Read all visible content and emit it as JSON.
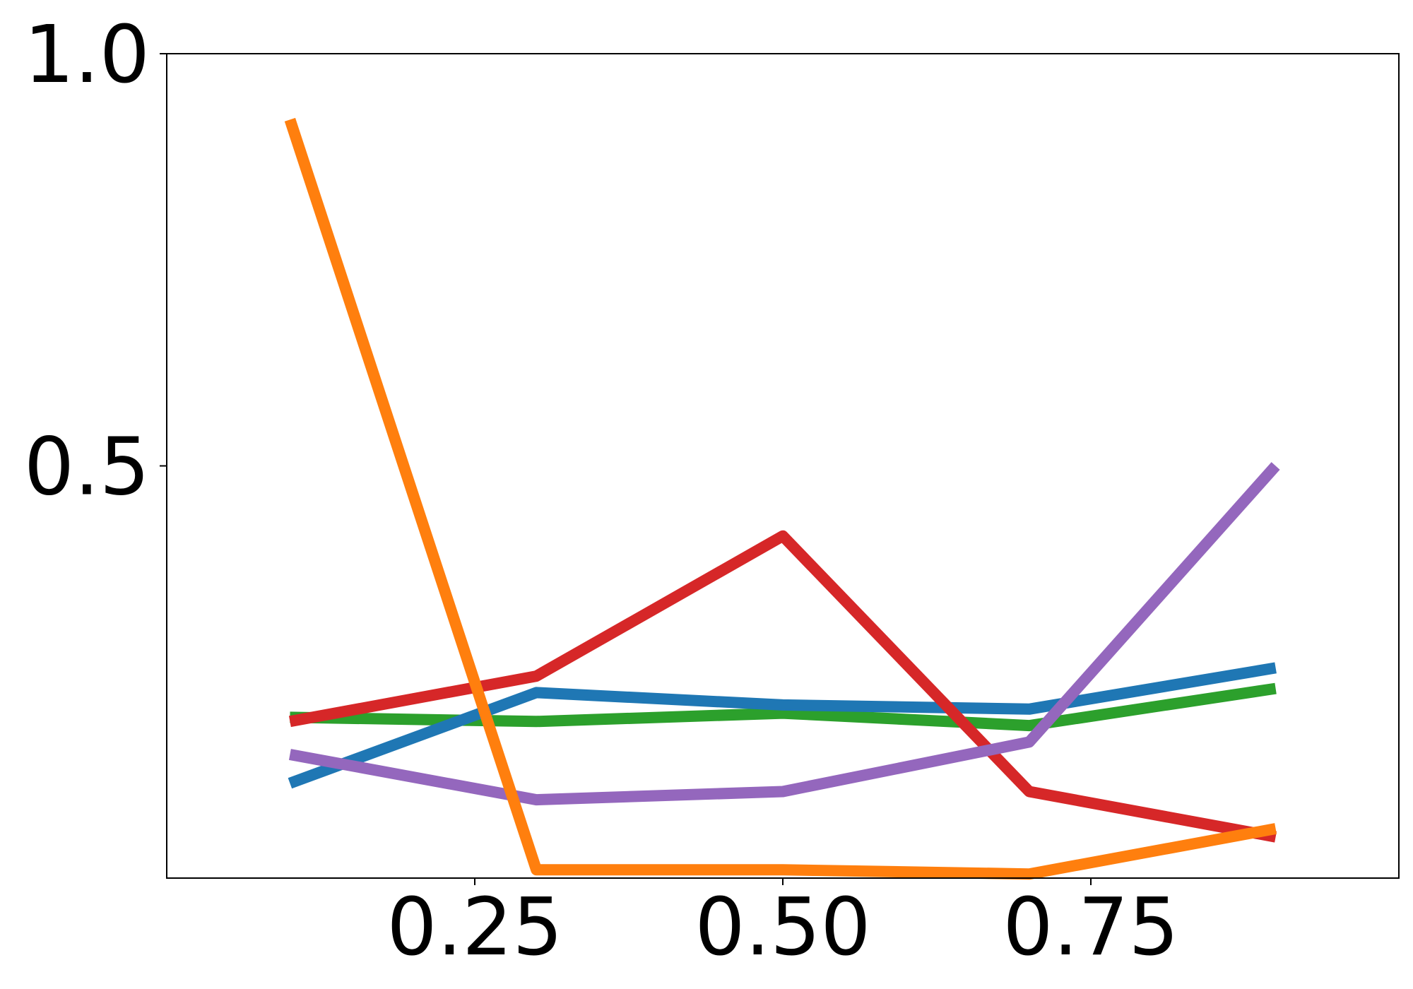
{
  "chart_data": {
    "type": "line",
    "title": "",
    "xlabel": "",
    "ylabel": "",
    "xlim": [
      0.0,
      1.0
    ],
    "ylim": [
      0.0,
      1.0
    ],
    "x_ticks": [
      {
        "value": 0.25,
        "label": "0.25"
      },
      {
        "value": 0.5,
        "label": "0.50"
      },
      {
        "value": 0.75,
        "label": "0.75"
      }
    ],
    "y_ticks": [
      {
        "value": 0.5,
        "label": "0.5"
      },
      {
        "value": 1.0,
        "label": "1.0"
      }
    ],
    "grid": false,
    "x": [
      0.1,
      0.3,
      0.5,
      0.7,
      0.9
    ],
    "series": [
      {
        "color": "#2ca02c",
        "values": [
          0.195,
          0.19,
          0.2,
          0.185,
          0.23
        ]
      },
      {
        "color": "#1f77b4",
        "values": [
          0.115,
          0.225,
          0.21,
          0.205,
          0.255
        ]
      },
      {
        "color": "#d62728",
        "values": [
          0.19,
          0.245,
          0.415,
          0.105,
          0.05
        ]
      },
      {
        "color": "#9467bd",
        "values": [
          0.15,
          0.095,
          0.105,
          0.165,
          0.5
        ]
      },
      {
        "color": "#ff7f0e",
        "values": [
          0.92,
          0.01,
          0.01,
          0.005,
          0.06
        ]
      }
    ]
  }
}
